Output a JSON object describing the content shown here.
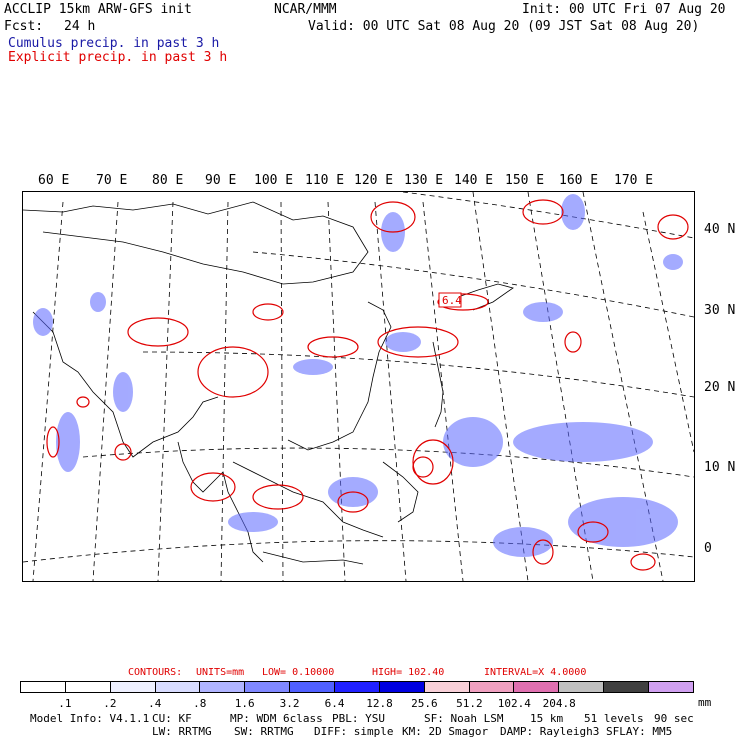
{
  "header": {
    "model": "ACCLIP 15km ARW-GFS init",
    "org": "NCAR/MMM",
    "init": "Init: 00 UTC Fri 07 Aug 20",
    "fcst_label": "Fcst:",
    "fcst_value": "24 h",
    "valid": "Valid: 00 UTC Sat 08 Aug 20 (09 JST Sat 08 Aug 20)",
    "cumulus": "Cumulus precip. in past 3 h",
    "explicit": "Explicit precip. in past 3 h"
  },
  "map": {
    "longitude_labels": [
      "60 E",
      "70 E",
      "80 E",
      "90 E",
      "100 E",
      "110 E",
      "120 E",
      "130 E",
      "140 E",
      "150 E",
      "160 E",
      "170 E"
    ],
    "latitude_labels": [
      "40 N",
      "30 N",
      "20 N",
      "10 N",
      "0"
    ],
    "high_marker": "6.4"
  },
  "contours": {
    "label": "CONTOURS:",
    "units": "UNITS=mm",
    "low": "LOW= 0.10000",
    "high": "HIGH= 102.40",
    "interval": "INTERVAL=X 4.0000"
  },
  "legend": {
    "colors": [
      "#ffffff",
      "#ffffff",
      "#eef0ff",
      "#d8dcff",
      "#b0b4ff",
      "#8088ff",
      "#5060ff",
      "#2020ff",
      "#0000e0",
      "#f8d0d8",
      "#f0a0c0",
      "#e070b0",
      "#c0c0c0",
      "#404040",
      "#d0a0f0"
    ],
    "ticks": [
      ".1",
      ".2",
      ".4",
      ".8",
      "1.6",
      "3.2",
      "6.4",
      "12.8",
      "25.6",
      "51.2",
      "102.4",
      "204.8"
    ],
    "unit": "mm"
  },
  "footer": {
    "line1": [
      "Model Info: V4.1.1",
      "CU: KF",
      "MP: WDM 6class",
      "PBL: YSU",
      "SF: Noah LSM",
      "15 km",
      "51 levels",
      "90 sec"
    ],
    "line2": [
      "LW: RRTMG",
      "SW: RRTMG",
      "DIFF: simple",
      "KM: 2D Smagor",
      "DAMP: Rayleigh3",
      "SFLAY: MM5"
    ]
  }
}
